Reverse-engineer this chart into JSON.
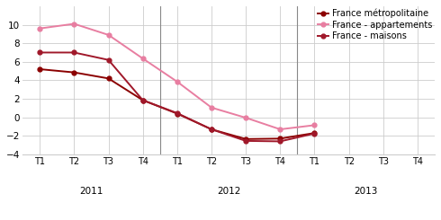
{
  "series": {
    "France métropolitaine": {
      "color": "#8B0000",
      "marker": "o",
      "markersize": 3.5,
      "linewidth": 1.4,
      "values": [
        5.2,
        4.85,
        4.2,
        1.85,
        0.4,
        -1.3,
        -2.35,
        -2.3,
        -1.7,
        null,
        null,
        null
      ]
    },
    "France - appartements": {
      "color": "#E87EA1",
      "marker": "o",
      "markersize": 3.5,
      "linewidth": 1.4,
      "values": [
        9.6,
        10.1,
        8.9,
        6.35,
        3.85,
        1.05,
        -0.05,
        -1.3,
        -0.85,
        null,
        null,
        null
      ]
    },
    "France - maisons": {
      "color": "#A0182A",
      "marker": "o",
      "markersize": 3.5,
      "linewidth": 1.4,
      "values": [
        7.0,
        7.0,
        6.2,
        1.85,
        0.45,
        -1.3,
        -2.55,
        -2.6,
        -1.75,
        null,
        null,
        null
      ]
    }
  },
  "x_labels": [
    "T1",
    "T2",
    "T3",
    "T4",
    "T1",
    "T2",
    "T3",
    "T4",
    "T1",
    "T2",
    "T3",
    "T4"
  ],
  "year_groups": [
    {
      "label": "2011",
      "positions": [
        0,
        1,
        2,
        3
      ]
    },
    {
      "label": "2012",
      "positions": [
        4,
        5,
        6,
        7
      ]
    },
    {
      "label": "2013",
      "positions": [
        8,
        9,
        10,
        11
      ]
    }
  ],
  "ylim": [
    -4,
    12
  ],
  "yticks": [
    -4,
    -2,
    0,
    2,
    4,
    6,
    8,
    10
  ],
  "grid_color": "#cccccc",
  "background_color": "#ffffff",
  "legend_order": [
    "France métropolitaine",
    "France - appartements",
    "France - maisons"
  ]
}
